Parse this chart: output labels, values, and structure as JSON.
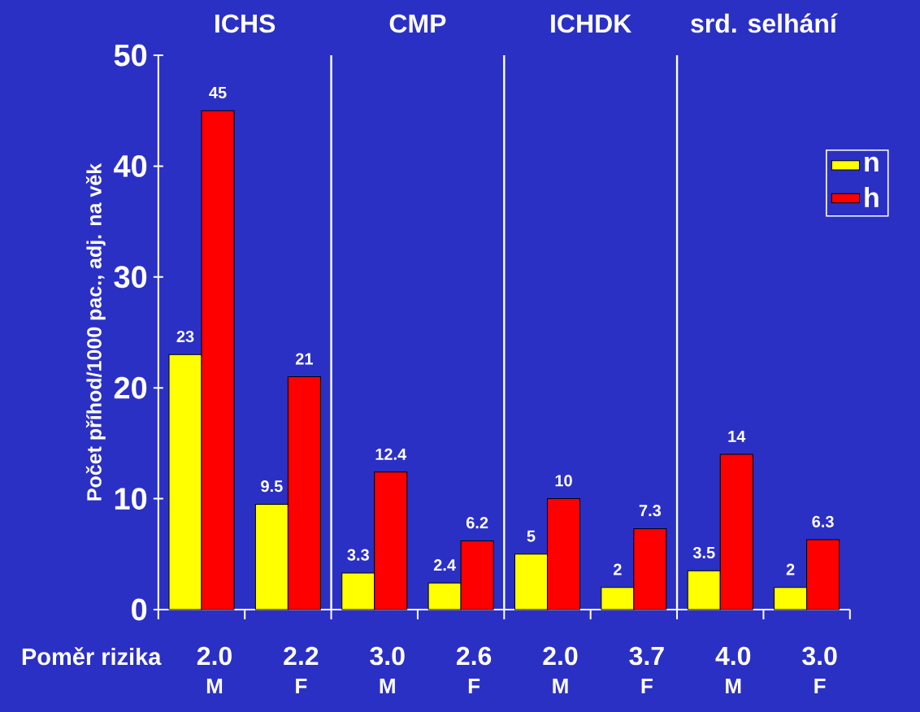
{
  "chart_data": {
    "type": "bar",
    "ylabel": "Počet příhod/1000 pac., adj. na věk",
    "categories": [
      "M",
      "F",
      "M",
      "F",
      "M",
      "F",
      "M",
      "F"
    ],
    "series": [
      {
        "name": "n",
        "color": "#ffff00",
        "values": [
          23,
          9.5,
          3.3,
          2.4,
          5,
          2,
          3.5,
          2
        ]
      },
      {
        "name": "h",
        "color": "#ff0000",
        "values": [
          45,
          21,
          12.4,
          6.2,
          10,
          7.3,
          14,
          6.3
        ]
      }
    ],
    "ylim": [
      0,
      50
    ],
    "yticks": [
      0,
      10,
      20,
      30,
      40,
      50
    ],
    "data_labels": true,
    "legend": "top right",
    "annotations": [
      "ICHS",
      "CMP",
      "ICHDK",
      "srd. selhání",
      "Poměr rizika",
      "2.0",
      "2.2",
      "3.0",
      "2.6",
      "2.0",
      "3.7",
      "4.0",
      "3.0"
    ]
  }
}
